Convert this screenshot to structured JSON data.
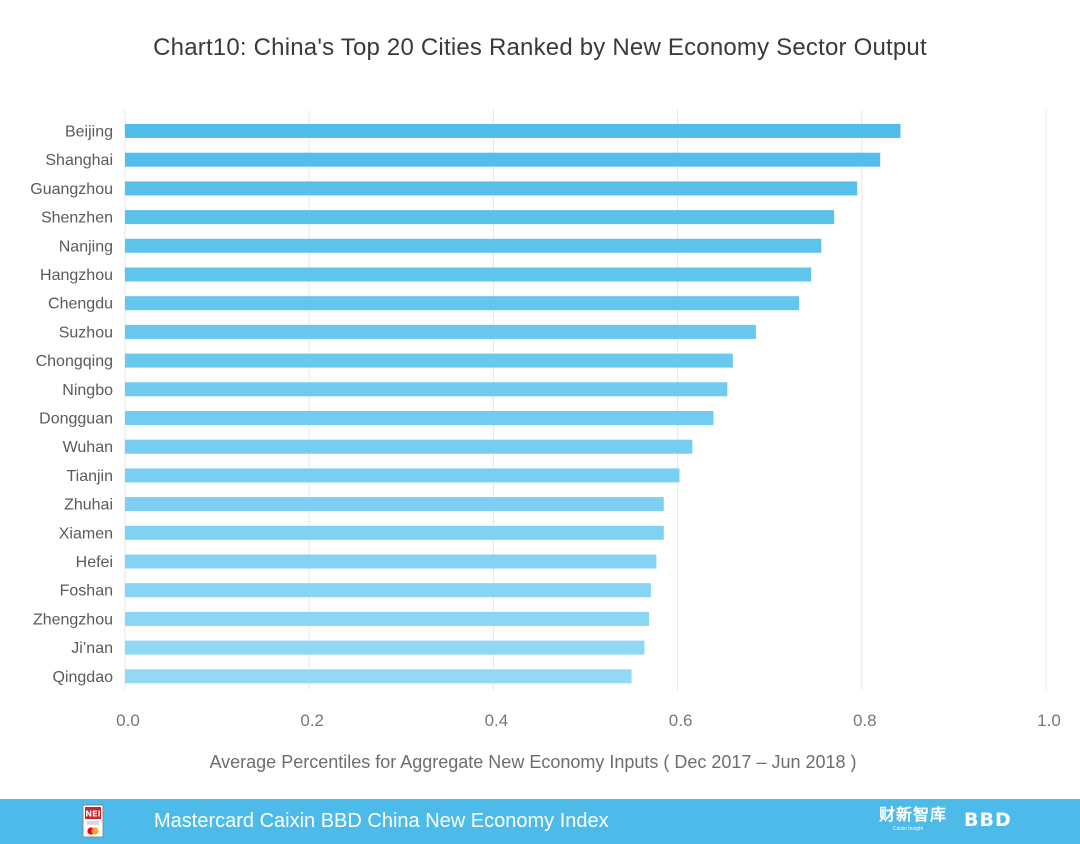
{
  "chart_data": {
    "type": "bar",
    "orientation": "horizontal",
    "title": "Chart10:  China's Top 20 Cities Ranked by New Economy Sector Output",
    "xlabel": "Average Percentiles for Aggregate New Economy Inputs ( Dec 2017 – Jun 2018 )",
    "ylabel": "",
    "xlim": [
      0,
      1.0
    ],
    "xticks": [
      "0.0",
      "0.2",
      "0.4",
      "0.6",
      "0.8",
      "1.0"
    ],
    "grid": "vertical",
    "categories": [
      "Beijing",
      "Shanghai",
      "Guangzhou",
      "Shenzhen",
      "Nanjing",
      "Hangzhou",
      "Chengdu",
      "Suzhou",
      "Chongqing",
      "Ningbo",
      "Dongguan",
      "Wuhan",
      "Tianjin",
      "Zhuhai",
      "Xiamen",
      "Hefei",
      "Foshan",
      "Zhengzhou",
      "Ji’nan",
      "Qingdao"
    ],
    "values": [
      0.842,
      0.82,
      0.795,
      0.77,
      0.756,
      0.745,
      0.732,
      0.685,
      0.66,
      0.654,
      0.639,
      0.616,
      0.602,
      0.585,
      0.585,
      0.577,
      0.571,
      0.569,
      0.564,
      0.55
    ]
  },
  "colors": {
    "bar_top": "#4fbde9",
    "bar_bottom": "#92d9f5",
    "gridline": "#e6e6e6",
    "footer_bg": "#4cbbe9"
  },
  "footer": {
    "text": "Mastercard Caixin BBD China New Economy Index",
    "logo_badge": "NEI",
    "caixin_logo": "财新智库",
    "caixin_sub": "Caixin Insight",
    "bbd_logo": "BBD"
  }
}
